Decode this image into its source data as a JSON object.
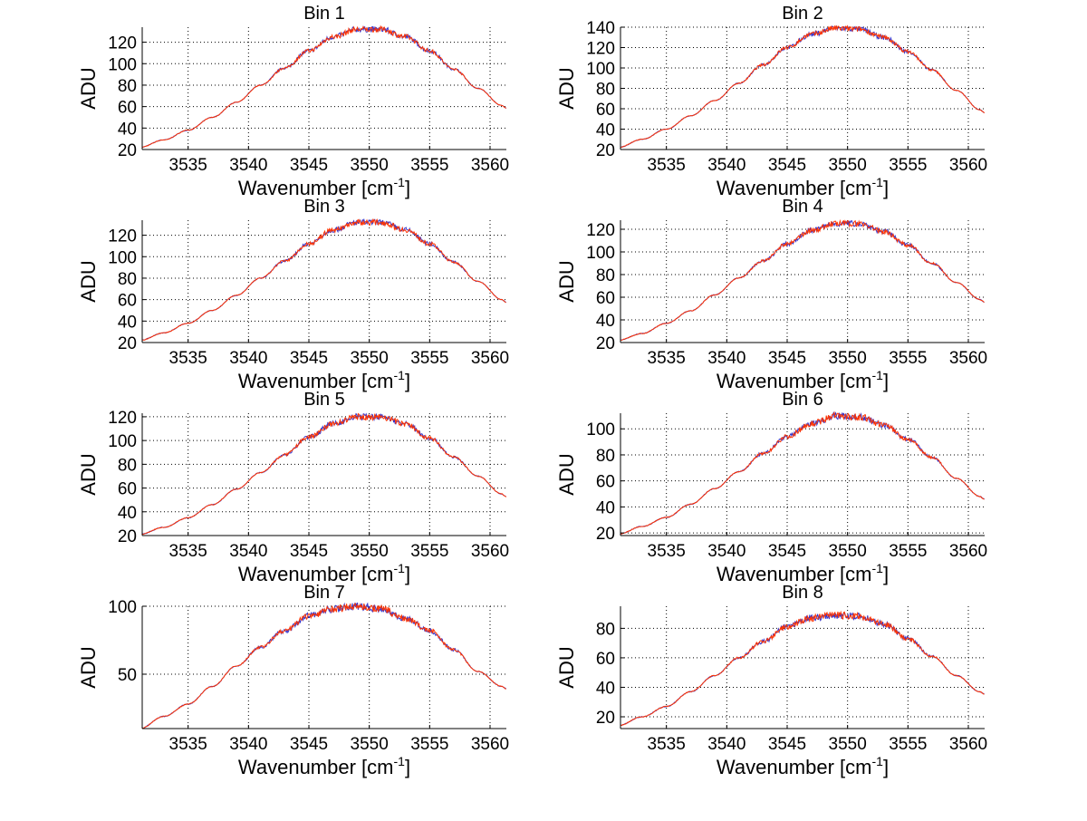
{
  "chart_data": {
    "type": "line",
    "layout": "4 rows x 2 columns",
    "colors": {
      "series_a": "#3333cc",
      "series_b": "#ff3300",
      "grid": "#000000"
    },
    "x": [
      3531,
      3533,
      3535,
      3537,
      3539,
      3541,
      3543,
      3545,
      3547,
      3549,
      3551,
      3553,
      3555,
      3557,
      3559,
      3561
    ],
    "xlim": [
      3531.2,
      3561.35
    ],
    "xticks": [
      3535,
      3540,
      3545,
      3550,
      3555,
      3560
    ],
    "xtick_labels": [
      "3535",
      "3540",
      "3545",
      "3550",
      "3555",
      "3560"
    ],
    "subplots": [
      {
        "title": "Bin 1",
        "xlabel": "Wavenumber [cm",
        "xlabel_sup": "-1",
        "xlabel_end": "]",
        "ylabel": "ADU",
        "ylim": [
          20,
          134
        ],
        "yticks": [
          20,
          40,
          60,
          80,
          100,
          120
        ],
        "ytick_labels": [
          "20",
          "40",
          "60",
          "80",
          "100",
          "120"
        ],
        "values": [
          22,
          29,
          38,
          50,
          64,
          80,
          96,
          112,
          125,
          132,
          132,
          125,
          112,
          95,
          77,
          61
        ]
      },
      {
        "title": "Bin 2",
        "xlabel": "Wavenumber [cm",
        "xlabel_sup": "-1",
        "xlabel_end": "]",
        "ylabel": "ADU",
        "ylim": [
          20,
          140
        ],
        "yticks": [
          20,
          40,
          60,
          80,
          100,
          120,
          140
        ],
        "ytick_labels": [
          "20",
          "40",
          "60",
          "80",
          "100",
          "120",
          "140"
        ],
        "values": [
          22,
          30,
          40,
          53,
          68,
          85,
          103,
          120,
          133,
          139,
          138,
          130,
          116,
          98,
          78,
          59
        ]
      },
      {
        "title": "Bin 3",
        "xlabel": "Wavenumber [cm",
        "xlabel_sup": "-1",
        "xlabel_end": "]",
        "ylabel": "ADU",
        "ylim": [
          20,
          134
        ],
        "yticks": [
          20,
          40,
          60,
          80,
          100,
          120
        ],
        "ytick_labels": [
          "20",
          "40",
          "60",
          "80",
          "100",
          "120"
        ],
        "values": [
          22,
          29,
          38,
          50,
          64,
          80,
          96,
          112,
          125,
          132,
          132,
          125,
          112,
          95,
          77,
          60
        ]
      },
      {
        "title": "Bin 4",
        "xlabel": "Wavenumber [cm",
        "xlabel_sup": "-1",
        "xlabel_end": "]",
        "ylabel": "ADU",
        "ylim": [
          20,
          128
        ],
        "yticks": [
          20,
          40,
          60,
          80,
          100,
          120
        ],
        "ytick_labels": [
          "20",
          "40",
          "60",
          "80",
          "100",
          "120"
        ],
        "values": [
          22,
          28,
          37,
          48,
          62,
          77,
          92,
          107,
          119,
          125,
          125,
          118,
          106,
          90,
          73,
          58
        ]
      },
      {
        "title": "Bin 5",
        "xlabel": "Wavenumber [cm",
        "xlabel_sup": "-1",
        "xlabel_end": "]",
        "ylabel": "ADU",
        "ylim": [
          20,
          123
        ],
        "yticks": [
          20,
          40,
          60,
          80,
          100,
          120
        ],
        "ytick_labels": [
          "20",
          "40",
          "60",
          "80",
          "100",
          "120"
        ],
        "values": [
          21,
          27,
          35,
          46,
          59,
          73,
          88,
          103,
          114,
          120,
          120,
          114,
          102,
          86,
          70,
          55
        ]
      },
      {
        "title": "Bin 6",
        "xlabel": "Wavenumber [cm",
        "xlabel_sup": "-1",
        "xlabel_end": "]",
        "ylabel": "ADU",
        "ylim": [
          18,
          112
        ],
        "yticks": [
          20,
          40,
          60,
          80,
          100
        ],
        "ytick_labels": [
          "20",
          "40",
          "60",
          "80",
          "100"
        ],
        "values": [
          19,
          25,
          32,
          42,
          54,
          67,
          81,
          94,
          104,
          110,
          109,
          103,
          92,
          78,
          62,
          48
        ]
      },
      {
        "title": "Bin 7",
        "xlabel": "Wavenumber [cm",
        "xlabel_sup": "-1",
        "xlabel_end": "]",
        "ylabel": "ADU",
        "ylim": [
          10,
          100
        ],
        "yticks": [
          50,
          100
        ],
        "ytick_labels": [
          "50",
          "100"
        ],
        "values": [
          10,
          19,
          28,
          41,
          56,
          70,
          82,
          93,
          98,
          100,
          98,
          91,
          82,
          68,
          52,
          41
        ]
      },
      {
        "title": "Bin 8",
        "xlabel": "Wavenumber [cm",
        "xlabel_sup": "-1",
        "xlabel_end": "]",
        "ylabel": "ADU",
        "ylim": [
          12,
          95
        ],
        "yticks": [
          20,
          40,
          60,
          80
        ],
        "ytick_labels": [
          "20",
          "40",
          "60",
          "80"
        ],
        "values": [
          14,
          20,
          27,
          37,
          48,
          60,
          71,
          81,
          87,
          89,
          88,
          83,
          73,
          61,
          48,
          37
        ]
      }
    ]
  }
}
